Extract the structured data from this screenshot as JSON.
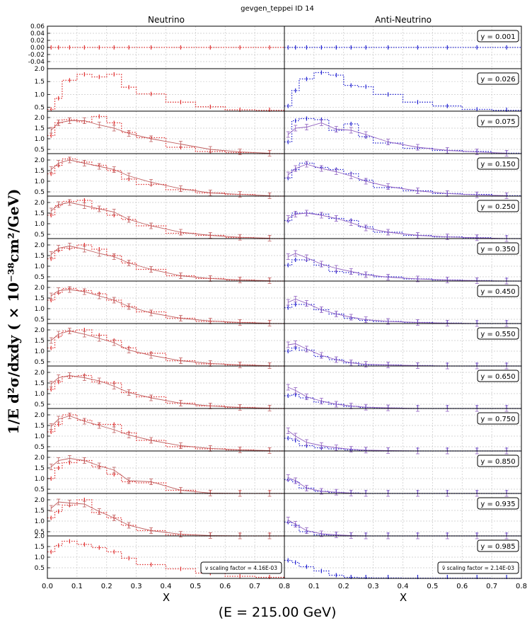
{
  "figure": {
    "title": "gevgen_teppei ID 14",
    "column_titles": [
      "Neutrino",
      "Anti-Neutrino"
    ],
    "ylabel": "1/E  d²σ/dxdy  ( × 10⁻³⁸cm²/GeV)",
    "xlabel": "X",
    "footer": "(E = 215.00 GeV)",
    "nu_scale_note": "ν scaling factor = 4.16E-03",
    "nubar_scale_note": "ν̄ scaling factor = 2.14E-03"
  },
  "colors": {
    "neutrino_data": "#e03030",
    "neutrino_model": "#c06060",
    "antineutrino_data": "#2020d0",
    "antineutrino_model": "#9060c0",
    "grid": "#c8c8c8",
    "frame": "#000000"
  },
  "chart_data": {
    "type": "line",
    "x_ticks": [
      "0.0",
      "0.1",
      "0.2",
      "0.3",
      "0.4",
      "0.5",
      "0.6",
      "0.7",
      "0.8"
    ],
    "xlim": [
      0.0,
      0.8
    ],
    "grid": true,
    "legend_placement": "top-right",
    "bins": [
      [
        0.0,
        0.025
      ],
      [
        0.025,
        0.05
      ],
      [
        0.05,
        0.1
      ],
      [
        0.1,
        0.15
      ],
      [
        0.15,
        0.2
      ],
      [
        0.2,
        0.25
      ],
      [
        0.25,
        0.3
      ],
      [
        0.3,
        0.4
      ],
      [
        0.4,
        0.5
      ],
      [
        0.5,
        0.6
      ],
      [
        0.6,
        0.7
      ],
      [
        0.7,
        0.8
      ]
    ],
    "model_x": [
      0.0125,
      0.0375,
      0.075,
      0.125,
      0.175,
      0.225,
      0.275,
      0.35,
      0.45,
      0.55,
      0.65,
      0.75
    ],
    "panels": [
      {
        "y_label": "y = 0.001",
        "ylim": [
          -0.06,
          0.06
        ],
        "y_ticks": [
          "0.06",
          "0.04",
          "0.02",
          "0.00",
          "-0.02",
          "-0.04"
        ],
        "nu_data": [
          0,
          0,
          0,
          0,
          0,
          0,
          0,
          0,
          0,
          0,
          0,
          0
        ],
        "nu_model": [],
        "nubar_data": [
          0,
          0,
          0,
          0,
          0,
          0,
          0,
          0,
          0,
          0,
          0,
          0
        ],
        "nubar_model": []
      },
      {
        "y_label": "y = 0.026",
        "ylim": [
          0.35,
          2.0
        ],
        "y_ticks": [
          "2.0",
          "1.5",
          "1.0",
          "0.5"
        ],
        "nu_data": [
          0.42,
          0.85,
          1.55,
          1.78,
          1.68,
          1.78,
          1.28,
          1.02,
          0.7,
          0.52,
          0.4,
          0.38
        ],
        "nu_model": [],
        "nubar_data": [
          0.55,
          1.15,
          1.6,
          1.85,
          1.75,
          1.35,
          1.3,
          1.0,
          0.7,
          0.55,
          0.42,
          0.38
        ],
        "nubar_model": []
      },
      {
        "y_label": "y = 0.075",
        "ylim": [
          0.3,
          2.3
        ],
        "y_ticks": [
          "2.0",
          "1.5",
          "1.0",
          "0.5"
        ],
        "nu_data": [
          1.15,
          1.75,
          1.9,
          1.8,
          2.05,
          1.75,
          1.3,
          1.05,
          0.6,
          0.4,
          0.35,
          0.3
        ],
        "nu_model": [
          1.4,
          1.75,
          1.85,
          1.85,
          1.65,
          1.5,
          1.25,
          1.0,
          0.75,
          0.5,
          0.38,
          0.32
        ],
        "nubar_data": [
          0.85,
          1.85,
          1.95,
          1.9,
          1.4,
          1.7,
          1.1,
          0.8,
          0.55,
          0.45,
          0.4,
          0.32
        ],
        "nubar_model": [
          1.2,
          1.5,
          1.55,
          1.75,
          1.45,
          1.4,
          1.2,
          0.85,
          0.6,
          0.45,
          0.38,
          0.32
        ]
      },
      {
        "y_label": "y = 0.150",
        "ylim": [
          0.3,
          2.3
        ],
        "y_ticks": [
          "2.0",
          "1.5",
          "1.0",
          "0.5"
        ],
        "nu_data": [
          1.35,
          1.75,
          2.05,
          1.9,
          1.75,
          1.5,
          1.1,
          0.85,
          0.6,
          0.45,
          0.38,
          0.3
        ],
        "nu_model": [
          1.55,
          1.85,
          2.0,
          1.85,
          1.7,
          1.55,
          1.25,
          0.95,
          0.65,
          0.45,
          0.38,
          0.32
        ],
        "nubar_data": [
          1.15,
          1.55,
          1.85,
          1.65,
          1.55,
          1.35,
          1.05,
          0.7,
          0.55,
          0.42,
          0.38,
          0.32
        ],
        "nubar_model": [
          1.3,
          1.6,
          1.8,
          1.6,
          1.45,
          1.25,
          1.0,
          0.75,
          0.55,
          0.42,
          0.36,
          0.32
        ]
      },
      {
        "y_label": "y = 0.250",
        "ylim": [
          0.3,
          2.3
        ],
        "y_ticks": [
          "2.0",
          "1.5",
          "1.0",
          "0.5"
        ],
        "nu_data": [
          1.4,
          1.85,
          2.05,
          2.1,
          1.7,
          1.4,
          1.2,
          0.9,
          0.55,
          0.45,
          0.35,
          0.3
        ],
        "nu_model": [
          1.6,
          1.9,
          2.0,
          1.85,
          1.7,
          1.55,
          1.2,
          0.9,
          0.6,
          0.45,
          0.36,
          0.32
        ],
        "nubar_data": [
          1.15,
          1.5,
          1.5,
          1.45,
          1.25,
          1.15,
          0.85,
          0.6,
          0.45,
          0.38,
          0.34,
          0.3
        ],
        "nubar_model": [
          1.25,
          1.45,
          1.5,
          1.4,
          1.25,
          1.05,
          0.8,
          0.6,
          0.45,
          0.38,
          0.34,
          0.3
        ]
      },
      {
        "y_label": "y = 0.350",
        "ylim": [
          0.3,
          2.3
        ],
        "y_ticks": [
          "2.0",
          "1.5",
          "1.0",
          "0.5"
        ],
        "nu_data": [
          1.35,
          1.75,
          1.85,
          2.0,
          1.8,
          1.5,
          1.15,
          0.85,
          0.55,
          0.42,
          0.35,
          0.3
        ],
        "nu_model": [
          1.55,
          1.85,
          1.95,
          1.8,
          1.6,
          1.45,
          1.15,
          0.85,
          0.55,
          0.42,
          0.35,
          0.32
        ],
        "nubar_data": [
          1.05,
          1.3,
          1.3,
          1.05,
          0.75,
          0.7,
          0.6,
          0.5,
          0.4,
          0.35,
          0.32,
          0.3
        ],
        "nubar_model": [
          1.45,
          1.6,
          1.4,
          1.1,
          0.9,
          0.75,
          0.6,
          0.48,
          0.4,
          0.35,
          0.32,
          0.3
        ]
      },
      {
        "y_label": "y = 0.450",
        "ylim": [
          0.3,
          2.3
        ],
        "y_ticks": [
          "2.0",
          "1.5",
          "1.0",
          "0.5"
        ],
        "nu_data": [
          1.4,
          1.75,
          1.95,
          1.85,
          1.7,
          1.4,
          1.1,
          0.85,
          0.55,
          0.4,
          0.35,
          0.3
        ],
        "nu_model": [
          1.6,
          1.85,
          1.9,
          1.8,
          1.6,
          1.4,
          1.1,
          0.8,
          0.55,
          0.42,
          0.35,
          0.32
        ],
        "nubar_data": [
          1.05,
          1.2,
          1.2,
          0.95,
          0.75,
          0.55,
          0.45,
          0.4,
          0.35,
          0.32,
          0.3,
          0.3
        ],
        "nubar_model": [
          1.3,
          1.45,
          1.25,
          0.95,
          0.75,
          0.6,
          0.48,
          0.4,
          0.35,
          0.32,
          0.3,
          0.3
        ]
      },
      {
        "y_label": "y = 0.550",
        "ylim": [
          0.3,
          2.3
        ],
        "y_ticks": [
          "2.0",
          "1.5",
          "1.0",
          "0.5"
        ],
        "nu_data": [
          1.15,
          1.7,
          1.95,
          2.0,
          1.75,
          1.5,
          1.15,
          0.9,
          0.55,
          0.4,
          0.35,
          0.3
        ],
        "nu_model": [
          1.5,
          1.8,
          1.95,
          1.8,
          1.6,
          1.4,
          1.05,
          0.8,
          0.55,
          0.42,
          0.35,
          0.32
        ],
        "nubar_data": [
          1.0,
          1.15,
          1.05,
          0.75,
          0.6,
          0.45,
          0.35,
          0.35,
          0.32,
          0.3,
          0.3,
          0.3
        ],
        "nubar_model": [
          1.3,
          1.35,
          1.1,
          0.8,
          0.6,
          0.45,
          0.38,
          0.35,
          0.32,
          0.3,
          0.3,
          0.3
        ]
      },
      {
        "y_label": "y = 0.650",
        "ylim": [
          0.3,
          2.3
        ],
        "y_ticks": [
          "2.0",
          "1.5",
          "1.0",
          "0.5"
        ],
        "nu_data": [
          1.2,
          1.55,
          1.8,
          1.85,
          1.55,
          1.5,
          1.05,
          0.85,
          0.55,
          0.42,
          0.35,
          0.3
        ],
        "nu_model": [
          1.45,
          1.75,
          1.85,
          1.75,
          1.6,
          1.35,
          1.05,
          0.8,
          0.55,
          0.42,
          0.35,
          0.32
        ],
        "nubar_data": [
          0.9,
          0.95,
          0.8,
          0.6,
          0.5,
          0.4,
          0.35,
          0.32,
          0.3,
          0.3,
          0.3,
          0.3
        ],
        "nubar_model": [
          1.3,
          1.15,
          0.85,
          0.65,
          0.5,
          0.42,
          0.36,
          0.33,
          0.3,
          0.3,
          0.3,
          0.3
        ]
      },
      {
        "y_label": "y = 0.750",
        "ylim": [
          0.3,
          2.3
        ],
        "y_ticks": [
          "2.0",
          "1.5",
          "1.0",
          "0.5"
        ],
        "nu_data": [
          1.2,
          1.55,
          2.0,
          1.75,
          1.55,
          1.55,
          1.15,
          0.8,
          0.5,
          0.4,
          0.35,
          0.3
        ],
        "nu_model": [
          1.45,
          1.8,
          1.95,
          1.7,
          1.5,
          1.3,
          1.05,
          0.8,
          0.55,
          0.42,
          0.35,
          0.32
        ],
        "nubar_data": [
          0.9,
          0.8,
          0.55,
          0.45,
          0.4,
          0.35,
          0.32,
          0.3,
          0.3,
          0.3,
          0.3,
          0.3
        ],
        "nubar_model": [
          1.25,
          1.0,
          0.7,
          0.55,
          0.45,
          0.38,
          0.34,
          0.32,
          0.3,
          0.3,
          0.3,
          0.3
        ]
      },
      {
        "y_label": "y = 0.850",
        "ylim": [
          0.3,
          2.3
        ],
        "y_ticks": [
          "2.0",
          "1.5",
          "1.0",
          "0.5"
        ],
        "nu_data": [
          1.0,
          1.5,
          1.75,
          1.85,
          1.55,
          1.2,
          0.85,
          0.8,
          0.45,
          0.3,
          0.3,
          0.3
        ],
        "nu_model": [
          1.55,
          1.85,
          1.95,
          1.85,
          1.6,
          1.4,
          0.9,
          0.85,
          0.45,
          0.32,
          0.3,
          0.3
        ],
        "nubar_data": [
          0.95,
          0.85,
          0.55,
          0.4,
          0.35,
          0.32,
          0.3,
          0.3,
          0.3,
          0.3,
          0.3,
          0.3
        ],
        "nubar_model": [
          1.05,
          0.9,
          0.55,
          0.4,
          0.36,
          0.32,
          0.3,
          0.3,
          0.3,
          0.3,
          0.3,
          0.3
        ]
      },
      {
        "y_label": "y = 0.935",
        "ylim": [
          0.3,
          2.3
        ],
        "y_ticks": [
          "2.0",
          "1.5",
          "1.0",
          "0.5"
        ],
        "nu_data": [
          1.15,
          1.45,
          1.75,
          2.0,
          1.4,
          1.15,
          0.8,
          0.55,
          0.35,
          0.3,
          0.3,
          0.3
        ],
        "nu_model": [
          1.6,
          1.9,
          1.85,
          1.8,
          1.45,
          1.15,
          0.8,
          0.55,
          0.38,
          0.32,
          0.3,
          0.3
        ],
        "nubar_data": [
          0.95,
          0.8,
          0.5,
          0.35,
          0.32,
          0.3,
          0.3,
          0.3,
          0.3,
          0.3,
          0.3,
          0.3
        ],
        "nubar_model": [
          1.05,
          0.85,
          0.55,
          0.4,
          0.35,
          0.32,
          0.3,
          0.3,
          0.3,
          0.3,
          0.3,
          0.3
        ]
      },
      {
        "y_label": "y = 0.985",
        "ylim": [
          0.0,
          2.0
        ],
        "y_ticks": [
          "2.0",
          "1.5",
          "1.0",
          "0.5"
        ],
        "nu_data": [
          1.25,
          1.55,
          1.75,
          1.6,
          1.45,
          1.25,
          0.95,
          0.65,
          0.45,
          0.25,
          0.1,
          0.05
        ],
        "nu_model": [],
        "nubar_data": [
          0.85,
          0.75,
          0.55,
          0.35,
          0.15,
          0.05,
          0.03,
          0.02,
          0.01,
          0.01,
          0.01,
          0.0
        ],
        "nubar_model": []
      }
    ]
  }
}
